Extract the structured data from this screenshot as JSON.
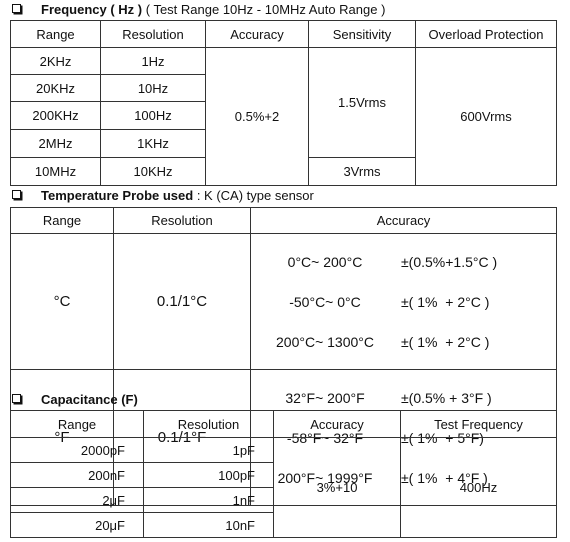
{
  "frequency": {
    "title": "Frequency ( Hz )",
    "note": "( Test Range 10Hz - 10MHz Auto Range )",
    "header": [
      "Range",
      "Resolution",
      "Accuracy",
      "Sensitivity",
      "Overload Protection"
    ],
    "rows": [
      [
        "2KHz",
        "1Hz"
      ],
      [
        "20KHz",
        "10Hz"
      ],
      [
        "200KHz",
        "100Hz"
      ],
      [
        "2MHz",
        "1KHz"
      ],
      [
        "10MHz",
        "10KHz"
      ]
    ],
    "accuracy": "0.5%+2",
    "sensitivity": [
      "1.5Vrms",
      "3Vrms"
    ],
    "overload": "600Vrms"
  },
  "temperature": {
    "title": "Temperature Probe used",
    "note": ": K (CA) type sensor",
    "header": [
      "Range",
      "Resolution",
      "Accuracy"
    ],
    "rows": [
      {
        "range": "°C",
        "resolution": "0.1/1°C",
        "accuracy": [
          [
            "0°C~ 200°C",
            "±(0.5%+1.5°C )"
          ],
          [
            "-50°C~ 0°C",
            "±( 1%  + 2°C )"
          ],
          [
            "200°C~ 1300°C",
            "±( 1%  + 2°C )"
          ]
        ]
      },
      {
        "range": "°F",
        "resolution": "0.1/1°F",
        "accuracy": [
          [
            "32°F~ 200°F",
            "±(0.5% + 3°F )"
          ],
          [
            "-58°F~ 32°F",
            "±( 1%  + 5°F)"
          ],
          [
            "200°F~ 1999°F",
            "±( 1%  + 4°F )"
          ]
        ]
      }
    ]
  },
  "capacitance": {
    "title": "Capacitance (F)",
    "header": [
      "Range",
      "Resolution",
      "Accuracy",
      "Test Frequency"
    ],
    "rows": [
      [
        "2000pF",
        "1pF"
      ],
      [
        "200nF",
        "100pF"
      ],
      [
        "2μF",
        "1nF"
      ],
      [
        "20μF",
        "10nF"
      ]
    ],
    "accuracy": "3%+10",
    "frequency": "400Hz"
  }
}
